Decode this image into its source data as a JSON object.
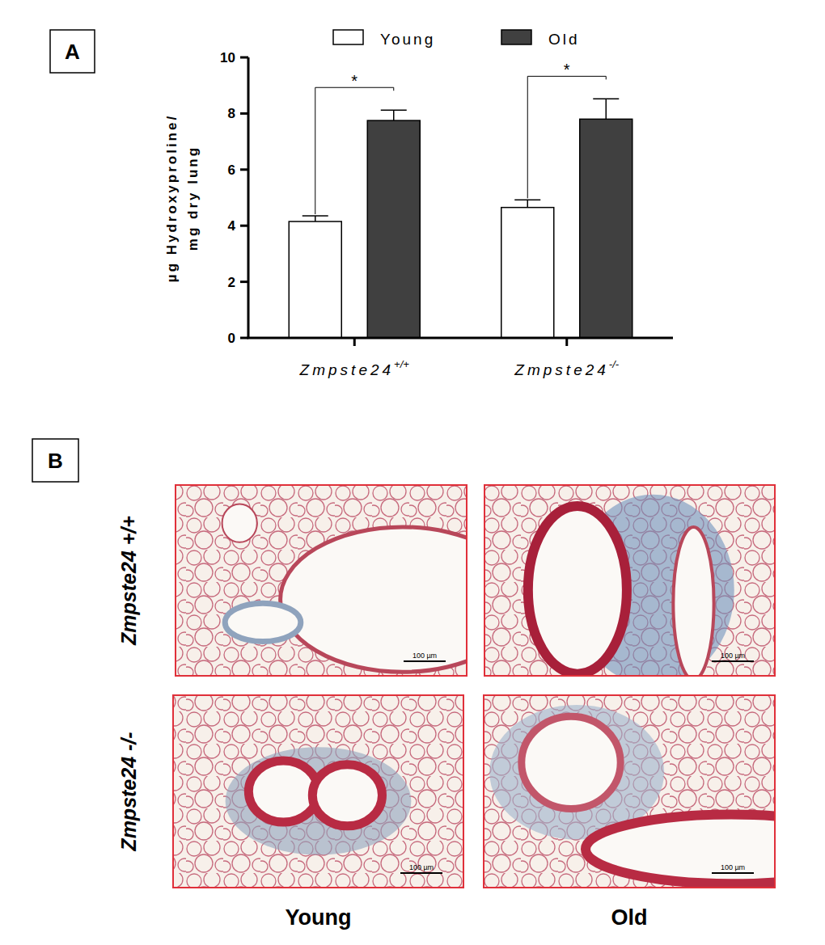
{
  "chart_data": {
    "type": "bar",
    "panel_label": "A",
    "y_label": [
      "µg Hydroxyproline/",
      "mg dry lung"
    ],
    "categories": [
      "Zmpste24+/+",
      "Zmpste24-/-"
    ],
    "series": [
      {
        "name": "Young",
        "color": "#ffffff",
        "values": [
          4.15,
          4.65
        ],
        "errors": [
          0.2,
          0.27
        ]
      },
      {
        "name": "Old",
        "color": "#404040",
        "values": [
          7.75,
          7.8
        ],
        "errors": [
          0.37,
          0.72
        ]
      }
    ],
    "significance": [
      {
        "label": "*"
      },
      {
        "label": "*"
      }
    ],
    "ylim": [
      0,
      10
    ],
    "yticks": [
      0,
      2,
      4,
      6,
      8,
      10
    ],
    "grid": false,
    "legend": "top"
  },
  "panel_b": {
    "panel_label": "B",
    "rows": [
      "Zmpste24 +/+",
      "Zmpste24 -/-"
    ],
    "columns": [
      "Young",
      "Old"
    ],
    "scale_bar": "100 µm"
  }
}
